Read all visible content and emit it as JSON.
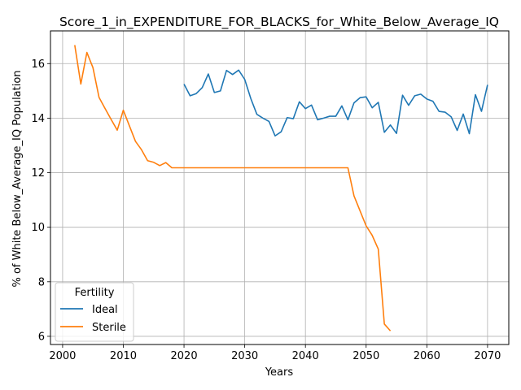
{
  "chart_data": {
    "type": "line",
    "title": "Score_1_in_EXPENDITURE_FOR_BLACKS_for_White_Below_Average_IQ",
    "xlabel": "Years",
    "ylabel": "% of White Below_Average_IQ Population",
    "xlim": [
      1998,
      2073.5
    ],
    "ylim": [
      5.7,
      17.2
    ],
    "xticks": [
      2000,
      2010,
      2020,
      2030,
      2040,
      2050,
      2060,
      2070
    ],
    "yticks": [
      6,
      8,
      10,
      12,
      14,
      16
    ],
    "grid": true,
    "legend": {
      "title": "Fertility",
      "position": "lower-left"
    },
    "series": [
      {
        "name": "Ideal",
        "color": "#1f77b4",
        "x": [
          2020,
          2021,
          2022,
          2023,
          2024,
          2025,
          2026,
          2027,
          2028,
          2029,
          2030,
          2031,
          2032,
          2033,
          2034,
          2035,
          2036,
          2037,
          2038,
          2039,
          2040,
          2041,
          2042,
          2043,
          2044,
          2045,
          2046,
          2047,
          2048,
          2049,
          2050,
          2051,
          2052,
          2053,
          2054,
          2055,
          2056,
          2057,
          2058,
          2059,
          2060,
          2061,
          2062,
          2063,
          2064,
          2065,
          2066,
          2067,
          2068,
          2069,
          2070
        ],
        "y": [
          15.25,
          14.82,
          14.9,
          15.12,
          15.62,
          14.94,
          15.0,
          15.75,
          15.6,
          15.76,
          15.42,
          14.72,
          14.14,
          14.0,
          13.88,
          13.35,
          13.5,
          14.02,
          13.98,
          14.6,
          14.35,
          14.48,
          13.94,
          14.0,
          14.07,
          14.07,
          14.45,
          13.94,
          14.56,
          14.75,
          14.78,
          14.38,
          14.58,
          13.48,
          13.75,
          13.44,
          14.84,
          14.47,
          14.82,
          14.88,
          14.7,
          14.62,
          14.25,
          14.22,
          14.05,
          13.55,
          14.15,
          13.43,
          14.86,
          14.25,
          15.22
        ]
      },
      {
        "name": "Sterile",
        "color": "#ff7f0e",
        "x": [
          2002,
          2003,
          2004,
          2005,
          2006,
          2007,
          2008,
          2009,
          2010,
          2011,
          2012,
          2013,
          2014,
          2015,
          2016,
          2017,
          2018,
          2019,
          2020,
          2021,
          2022,
          2023,
          2024,
          2025,
          2026,
          2027,
          2028,
          2029,
          2030,
          2031,
          2032,
          2033,
          2034,
          2035,
          2036,
          2037,
          2038,
          2039,
          2040,
          2041,
          2042,
          2043,
          2044,
          2045,
          2046,
          2047,
          2048,
          2049,
          2050,
          2051,
          2052,
          2053,
          2054
        ],
        "y": [
          16.68,
          15.25,
          16.41,
          15.85,
          14.76,
          14.35,
          13.95,
          13.56,
          14.29,
          13.72,
          13.15,
          12.84,
          12.44,
          12.38,
          12.26,
          12.37,
          12.18,
          12.18,
          12.18,
          12.18,
          12.18,
          12.18,
          12.18,
          12.18,
          12.18,
          12.18,
          12.18,
          12.18,
          12.18,
          12.18,
          12.18,
          12.18,
          12.18,
          12.18,
          12.18,
          12.18,
          12.18,
          12.18,
          12.18,
          12.18,
          12.18,
          12.18,
          12.18,
          12.18,
          12.18,
          12.18,
          11.15,
          10.6,
          10.05,
          9.7,
          9.2,
          6.45,
          6.2
        ]
      }
    ]
  }
}
